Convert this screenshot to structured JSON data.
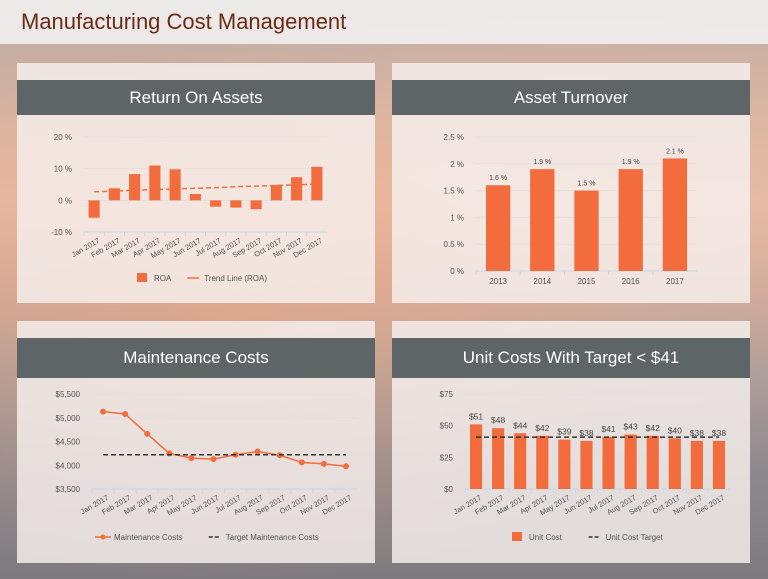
{
  "header": {
    "title": "Manufacturing Cost Management"
  },
  "colors": {
    "accent": "#f26c3d",
    "header_bar": "#5e6567",
    "title": "#6b2a14"
  },
  "chart_data": [
    {
      "id": "roa",
      "title": "Return On Assets",
      "type": "bar",
      "categories": [
        "Jan 2017",
        "Feb 2017",
        "Mar 2017",
        "Apr 2017",
        "May 2017",
        "Jun 2017",
        "Jul 2017",
        "Aug 2017",
        "Sep 2017",
        "Oct 2017",
        "Nov 2017",
        "Dec 2017"
      ],
      "series": [
        {
          "name": "ROA",
          "type": "bar",
          "values": [
            -5.5,
            3.8,
            8.3,
            11,
            9.8,
            2,
            -2,
            -2.3,
            -2.8,
            4.8,
            7.3,
            10.6
          ]
        },
        {
          "name": "Trend Line (ROA)",
          "type": "dashed-line",
          "values": [
            2.7,
            2.9,
            3.2,
            3.4,
            3.6,
            3.8,
            4.0,
            4.3,
            4.5,
            4.7,
            4.9,
            5.2
          ]
        }
      ],
      "ylim": [
        -10,
        20
      ],
      "yticks": [
        -10,
        0,
        10,
        20
      ],
      "ytick_labels": [
        "-10 %",
        "0 %",
        "10 %",
        "20 %"
      ],
      "grid": true,
      "legend": "bottom",
      "rotated_labels": true
    },
    {
      "id": "turnover",
      "title": "Asset Turnover",
      "type": "bar",
      "categories": [
        "2013",
        "2014",
        "2015",
        "2016",
        "2017"
      ],
      "series": [
        {
          "type": "bar",
          "values": [
            1.6,
            1.9,
            1.5,
            1.9,
            2.1
          ],
          "labels": [
            "1.6 %",
            "1.9 %",
            "1.5 %",
            "1.9 %",
            "2.1 %"
          ]
        }
      ],
      "ylim": [
        0,
        2.5
      ],
      "yticks": [
        0,
        0.5,
        1,
        1.5,
        2,
        2.5
      ],
      "ytick_labels": [
        "0 %",
        "0.5 %",
        "1 %",
        "1.5 %",
        "2 %",
        "2.5 %"
      ],
      "grid": true
    },
    {
      "id": "maint",
      "title": "Maintenance Costs",
      "type": "line",
      "categories": [
        "Jan 2017",
        "Feb 2017",
        "Mar 2017",
        "Apr 2017",
        "May 2017",
        "Jun 2017",
        "Jul 2017",
        "Aug 2017",
        "Sep 2017",
        "Oct 2017",
        "Nov 2017",
        "Dec 2017"
      ],
      "series": [
        {
          "name": "Maintenance Costs",
          "type": "line",
          "values": [
            5130,
            5080,
            4660,
            4250,
            4150,
            4130,
            4220,
            4290,
            4210,
            4060,
            4030,
            3980
          ]
        },
        {
          "name": "Target Maintenance Costs",
          "type": "dashed-line",
          "values": [
            4220,
            4220,
            4220,
            4220,
            4220,
            4220,
            4220,
            4220,
            4220,
            4220,
            4220,
            4220
          ]
        }
      ],
      "ylim": [
        3500,
        5500
      ],
      "yticks": [
        3500,
        4000,
        4500,
        5000,
        5500
      ],
      "ytick_labels": [
        "$3,500",
        "$4,000",
        "$4,500",
        "$5,000",
        "$5,500"
      ],
      "grid": true,
      "legend": "bottom",
      "rotated_labels": true
    },
    {
      "id": "unit",
      "title": "Unit Costs With Target < $41",
      "type": "bar",
      "categories": [
        "Jan 2017",
        "Feb 2017",
        "Mar 2017",
        "Apr 2017",
        "May 2017",
        "Jun 2017",
        "Jul 2017",
        "Aug 2017",
        "Sep 2017",
        "Oct 2017",
        "Nov 2017",
        "Dec 2017"
      ],
      "series": [
        {
          "name": "Unit Cost",
          "type": "bar",
          "values": [
            51,
            48,
            44,
            42,
            39,
            38,
            41,
            43,
            42,
            40,
            38,
            38
          ],
          "labels": [
            "$51",
            "$48",
            "$44",
            "$42",
            "$39",
            "$38",
            "$41",
            "$43",
            "$42",
            "$40",
            "$38",
            "$38"
          ]
        },
        {
          "name": "Unit Cost Target",
          "type": "dashed-line",
          "values": [
            41,
            41,
            41,
            41,
            41,
            41,
            41,
            41,
            41,
            41,
            41,
            41
          ]
        }
      ],
      "ylim": [
        0,
        75
      ],
      "yticks": [
        0,
        25,
        50,
        75
      ],
      "ytick_labels": [
        "$0",
        "$25",
        "$50",
        "$75"
      ],
      "grid": true,
      "legend": "bottom",
      "rotated_labels": true
    }
  ]
}
